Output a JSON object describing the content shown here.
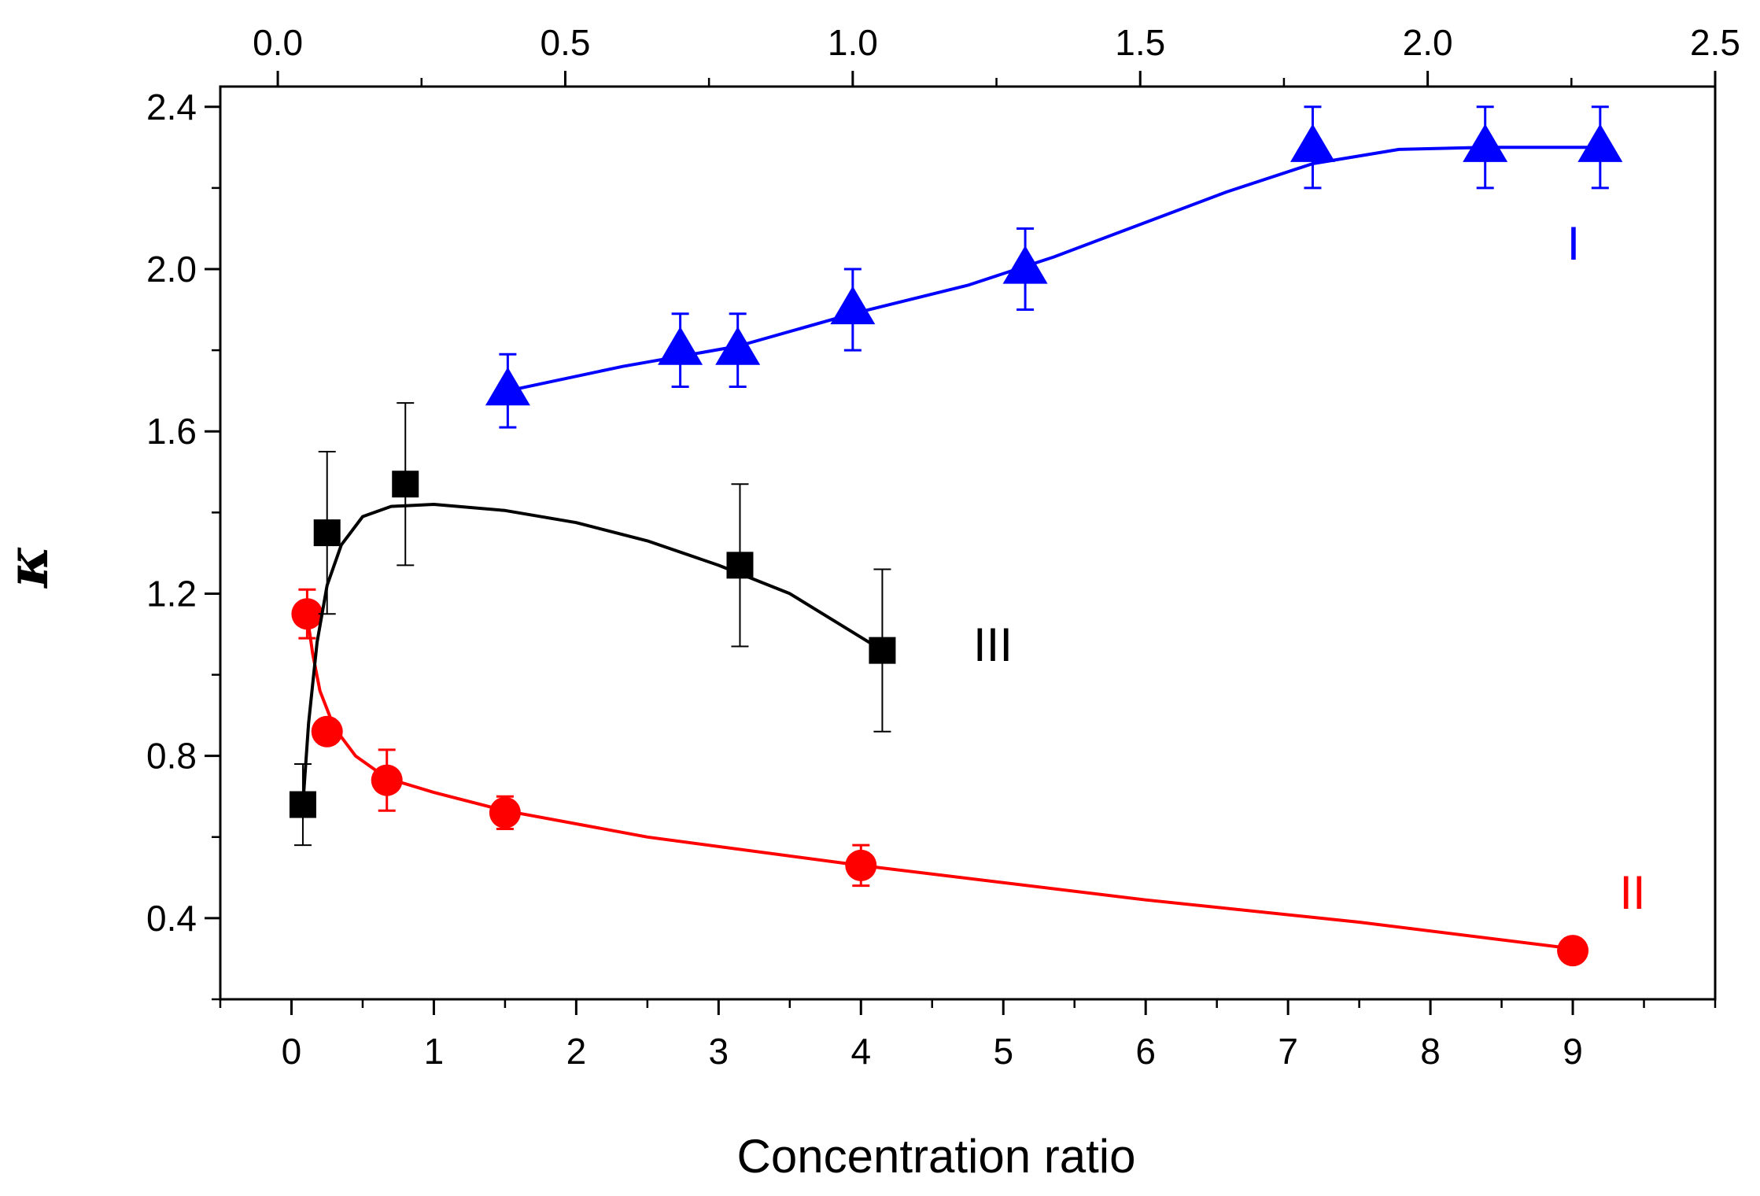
{
  "chart_data": {
    "type": "scatter",
    "title": "",
    "xlabel": "Concentration ratio",
    "ylabel": "κ",
    "xlim": [
      -0.5,
      10.0
    ],
    "ylim": [
      0.2,
      2.45
    ],
    "top_xlim": [
      -0.1,
      2.5
    ],
    "x_ticks": [
      "0",
      "1",
      "2",
      "3",
      "4",
      "5",
      "6",
      "7",
      "8",
      "9"
    ],
    "x_tick_values": [
      0,
      1,
      2,
      3,
      4,
      5,
      6,
      7,
      8,
      9
    ],
    "top_ticks": [
      "0.0",
      "0.5",
      "1.0",
      "1.5",
      "2.0",
      "2.5"
    ],
    "top_tick_values": [
      0.0,
      0.5,
      1.0,
      1.5,
      2.0,
      2.5
    ],
    "y_ticks": [
      "0.4",
      "0.8",
      "1.2",
      "1.6",
      "2.0",
      "2.4"
    ],
    "y_tick_values": [
      0.4,
      0.8,
      1.2,
      1.6,
      2.0,
      2.4
    ],
    "series": [
      {
        "name": "I",
        "label": "I",
        "axis": "top",
        "color": "#0000ff",
        "marker": "triangle",
        "x": [
          0.4,
          0.7,
          0.8,
          1.0,
          1.3,
          1.8,
          2.1,
          2.3
        ],
        "y": [
          1.7,
          1.8,
          1.8,
          1.9,
          2.0,
          2.3,
          2.3,
          2.3
        ],
        "err": [
          0.09,
          0.09,
          0.09,
          0.1,
          0.1,
          0.1,
          0.1,
          0.1
        ],
        "fit": [
          [
            0.4,
            1.7
          ],
          [
            0.6,
            1.76
          ],
          [
            0.8,
            1.81
          ],
          [
            1.0,
            1.89
          ],
          [
            1.2,
            1.96
          ],
          [
            1.35,
            2.03
          ],
          [
            1.5,
            2.11
          ],
          [
            1.65,
            2.19
          ],
          [
            1.8,
            2.26
          ],
          [
            1.95,
            2.295
          ],
          [
            2.1,
            2.3
          ],
          [
            2.3,
            2.3
          ]
        ]
      },
      {
        "name": "II",
        "label": "II",
        "axis": "bottom",
        "color": "#ff0000",
        "marker": "circle",
        "x": [
          0.11,
          0.25,
          0.67,
          1.5,
          4.0,
          9.0
        ],
        "y": [
          1.15,
          0.86,
          0.74,
          0.66,
          0.53,
          0.32
        ],
        "err": [
          0.06,
          0.03,
          0.075,
          0.04,
          0.05,
          0.03
        ],
        "fit": [
          [
            0.1,
            1.17
          ],
          [
            0.15,
            1.05
          ],
          [
            0.2,
            0.96
          ],
          [
            0.3,
            0.87
          ],
          [
            0.45,
            0.8
          ],
          [
            0.67,
            0.745
          ],
          [
            1.0,
            0.71
          ],
          [
            1.5,
            0.665
          ],
          [
            2.5,
            0.6
          ],
          [
            4.0,
            0.53
          ],
          [
            6.0,
            0.445
          ],
          [
            7.5,
            0.39
          ],
          [
            9.0,
            0.325
          ]
        ]
      },
      {
        "name": "III",
        "label": "III",
        "axis": "bottom",
        "color": "#000000",
        "marker": "square",
        "x": [
          0.08,
          0.25,
          0.8,
          3.15,
          4.15
        ],
        "y": [
          0.68,
          1.35,
          1.47,
          1.27,
          1.06
        ],
        "err": [
          0.1,
          0.2,
          0.2,
          0.2,
          0.2
        ],
        "fit": [
          [
            0.08,
            0.68
          ],
          [
            0.12,
            0.88
          ],
          [
            0.18,
            1.08
          ],
          [
            0.25,
            1.22
          ],
          [
            0.35,
            1.32
          ],
          [
            0.5,
            1.39
          ],
          [
            0.7,
            1.415
          ],
          [
            1.0,
            1.42
          ],
          [
            1.5,
            1.405
          ],
          [
            2.0,
            1.375
          ],
          [
            2.5,
            1.33
          ],
          [
            3.0,
            1.27
          ],
          [
            3.5,
            1.2
          ],
          [
            4.15,
            1.06
          ]
        ]
      }
    ]
  }
}
